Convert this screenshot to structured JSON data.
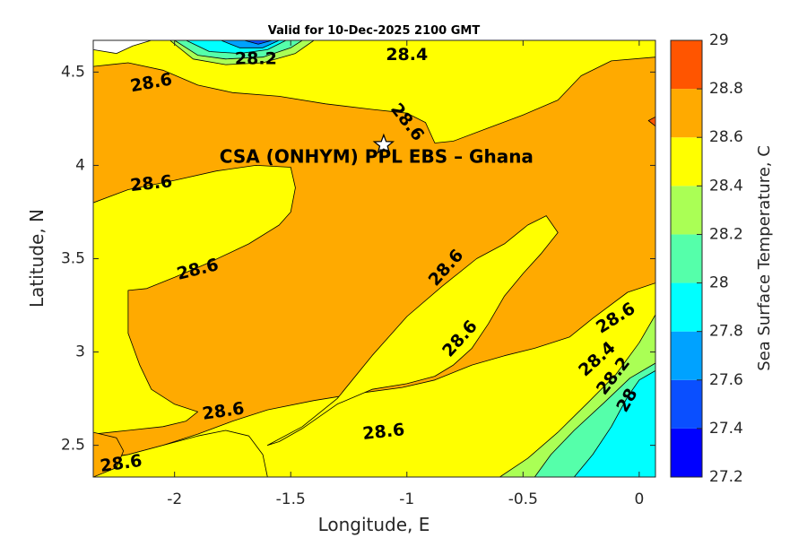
{
  "chart_data": {
    "type": "heatmap",
    "subtype": "filled-contour-map",
    "title": "Valid for 10-Dec-2025 2100 GMT",
    "xlabel": "Longitude, E",
    "ylabel": "Latitude, N",
    "xlim": [
      -2.35,
      0.07
    ],
    "ylim": [
      2.33,
      4.67
    ],
    "xticks": [
      -2,
      -1.5,
      -1,
      -0.5,
      0
    ],
    "xtick_labels": [
      "-2",
      "-1.5",
      "-1",
      "-0.5",
      "0"
    ],
    "yticks": [
      2.5,
      3,
      3.5,
      4,
      4.5
    ],
    "ytick_labels": [
      "2.5",
      "3",
      "3.5",
      "4",
      "4.5"
    ],
    "colorbar": {
      "label": "Sea Surface Temperature, C",
      "ticks": [
        27.2,
        27.4,
        27.6,
        27.8,
        28,
        28.2,
        28.4,
        28.6,
        28.8,
        29
      ],
      "tick_labels": [
        "27.2",
        "27.4",
        "27.6",
        "27.8",
        "28",
        "28.2",
        "28.4",
        "28.6",
        "28.8",
        "29"
      ],
      "levels": [
        {
          "min": 27.2,
          "max": 27.4,
          "color": "#0000ff"
        },
        {
          "min": 27.4,
          "max": 27.6,
          "color": "#0a4fff"
        },
        {
          "min": 27.6,
          "max": 27.8,
          "color": "#00a2ff"
        },
        {
          "min": 27.8,
          "max": 28.0,
          "color": "#00ffff"
        },
        {
          "min": 28.0,
          "max": 28.2,
          "color": "#55ffaa"
        },
        {
          "min": 28.2,
          "max": 28.4,
          "color": "#aaff55"
        },
        {
          "min": 28.4,
          "max": 28.6,
          "color": "#ffff00"
        },
        {
          "min": 28.6,
          "max": 28.8,
          "color": "#ffaa00"
        },
        {
          "min": 28.8,
          "max": 29.0,
          "color": "#ff5500"
        }
      ]
    },
    "marker": {
      "label": "CSA (ONHYM) PPL EBS  – Ghana",
      "lon": -1.1,
      "lat": 4.11,
      "symbol": "star"
    },
    "regions": [
      {
        "value": 28.5,
        "color": "#ffff00",
        "points": [
          [
            -2.35,
            4.67
          ],
          [
            0.07,
            4.67
          ],
          [
            0.07,
            2.33
          ],
          [
            -2.35,
            2.33
          ]
        ]
      },
      {
        "value": 28.7,
        "color": "#ffaa00",
        "points": [
          [
            -2.35,
            4.53
          ],
          [
            -2.2,
            4.55
          ],
          [
            -2.05,
            4.51
          ],
          [
            -1.9,
            4.43
          ],
          [
            -1.75,
            4.39
          ],
          [
            -1.55,
            4.37
          ],
          [
            -1.35,
            4.33
          ],
          [
            -1.15,
            4.3
          ],
          [
            -1.0,
            4.28
          ],
          [
            -0.92,
            4.23
          ],
          [
            -0.88,
            4.12
          ],
          [
            -0.8,
            4.13
          ],
          [
            -0.65,
            4.2
          ],
          [
            -0.5,
            4.27
          ],
          [
            -0.35,
            4.35
          ],
          [
            -0.25,
            4.48
          ],
          [
            -0.12,
            4.56
          ],
          [
            0.07,
            4.58
          ],
          [
            0.07,
            3.37
          ],
          [
            -0.05,
            3.32
          ],
          [
            -0.2,
            3.18
          ],
          [
            -0.3,
            3.08
          ],
          [
            -0.45,
            3.02
          ],
          [
            -0.58,
            2.98
          ],
          [
            -0.72,
            2.93
          ],
          [
            -0.88,
            2.85
          ],
          [
            -1.02,
            2.81
          ],
          [
            -1.2,
            2.78
          ],
          [
            -1.4,
            2.74
          ],
          [
            -1.6,
            2.69
          ],
          [
            -1.75,
            2.63
          ],
          [
            -1.9,
            2.56
          ],
          [
            -2.05,
            2.5
          ],
          [
            -2.2,
            2.45
          ],
          [
            -2.35,
            2.43
          ]
        ]
      },
      {
        "value": 28.5,
        "color": "#ffff00",
        "points": [
          [
            -2.35,
            3.8
          ],
          [
            -2.2,
            3.87
          ],
          [
            -2.0,
            3.92
          ],
          [
            -1.82,
            3.97
          ],
          [
            -1.65,
            4.0
          ],
          [
            -1.5,
            3.99
          ],
          [
            -1.48,
            3.88
          ],
          [
            -1.5,
            3.75
          ],
          [
            -1.55,
            3.68
          ],
          [
            -1.68,
            3.58
          ],
          [
            -1.85,
            3.48
          ],
          [
            -2.0,
            3.4
          ],
          [
            -2.12,
            3.34
          ],
          [
            -2.2,
            3.33
          ],
          [
            -2.2,
            3.1
          ],
          [
            -2.15,
            2.93
          ],
          [
            -2.1,
            2.8
          ],
          [
            -2.0,
            2.72
          ],
          [
            -1.9,
            2.68
          ],
          [
            -1.95,
            2.63
          ],
          [
            -2.05,
            2.6
          ],
          [
            -2.2,
            2.58
          ],
          [
            -2.35,
            2.56
          ]
        ]
      },
      {
        "value": 28.5,
        "color": "#ffff00",
        "points": [
          [
            -1.6,
            2.5
          ],
          [
            -1.45,
            2.6
          ],
          [
            -1.3,
            2.75
          ],
          [
            -1.15,
            2.98
          ],
          [
            -1.0,
            3.19
          ],
          [
            -0.85,
            3.35
          ],
          [
            -0.7,
            3.5
          ],
          [
            -0.58,
            3.58
          ],
          [
            -0.48,
            3.68
          ],
          [
            -0.4,
            3.73
          ],
          [
            -0.35,
            3.64
          ],
          [
            -0.42,
            3.53
          ],
          [
            -0.5,
            3.42
          ],
          [
            -0.58,
            3.3
          ],
          [
            -0.65,
            3.15
          ],
          [
            -0.72,
            3.02
          ],
          [
            -0.8,
            2.93
          ],
          [
            -0.88,
            2.87
          ],
          [
            -1.0,
            2.83
          ],
          [
            -1.15,
            2.8
          ],
          [
            -1.3,
            2.72
          ],
          [
            -1.45,
            2.59
          ],
          [
            -1.55,
            2.52
          ]
        ]
      },
      {
        "value": 28.5,
        "color": "#ffff00",
        "points": [
          [
            -2.35,
            2.33
          ],
          [
            -2.35,
            2.42
          ],
          [
            -2.2,
            2.45
          ],
          [
            -2.05,
            2.5
          ],
          [
            -1.9,
            2.55
          ],
          [
            -1.78,
            2.58
          ],
          [
            -1.68,
            2.55
          ],
          [
            -1.62,
            2.45
          ],
          [
            -1.6,
            2.33
          ]
        ]
      },
      {
        "value": 28.5,
        "color": "#ffff00",
        "points": [
          [
            -0.42,
            2.33
          ],
          [
            -0.3,
            2.36
          ],
          [
            -0.18,
            2.44
          ],
          [
            -0.1,
            2.56
          ],
          [
            -0.02,
            2.68
          ],
          [
            0.07,
            2.73
          ],
          [
            0.07,
            2.33
          ]
        ]
      },
      {
        "value": 28.3,
        "color": "#aaff55",
        "points": [
          [
            -0.6,
            2.33
          ],
          [
            -0.48,
            2.43
          ],
          [
            -0.35,
            2.57
          ],
          [
            -0.22,
            2.73
          ],
          [
            -0.1,
            2.88
          ],
          [
            0.0,
            3.05
          ],
          [
            0.07,
            3.2
          ],
          [
            0.07,
            2.33
          ]
        ]
      },
      {
        "value": 28.1,
        "color": "#55ffaa",
        "points": [
          [
            -0.45,
            2.33
          ],
          [
            -0.38,
            2.45
          ],
          [
            -0.28,
            2.58
          ],
          [
            -0.15,
            2.73
          ],
          [
            -0.04,
            2.86
          ],
          [
            0.07,
            2.94
          ],
          [
            0.07,
            2.33
          ]
        ]
      },
      {
        "value": 27.9,
        "color": "#00ffff",
        "points": [
          [
            -0.28,
            2.33
          ],
          [
            -0.2,
            2.45
          ],
          [
            -0.12,
            2.6
          ],
          [
            -0.05,
            2.76
          ],
          [
            0.0,
            2.85
          ],
          [
            0.07,
            2.9
          ],
          [
            0.07,
            2.33
          ]
        ]
      },
      {
        "value": 28.7,
        "color": "#ffaa00",
        "points": [
          [
            -2.35,
            2.33
          ],
          [
            -2.25,
            2.38
          ],
          [
            -2.22,
            2.47
          ],
          [
            -2.25,
            2.54
          ],
          [
            -2.35,
            2.57
          ]
        ]
      },
      {
        "value": 28.9,
        "color": "#ff5500",
        "points": [
          [
            0.07,
            4.26
          ],
          [
            0.04,
            4.24
          ],
          [
            0.07,
            4.21
          ]
        ]
      },
      {
        "value": 28.3,
        "color": "#aaff55",
        "points": [
          [
            -2.02,
            4.67
          ],
          [
            -1.92,
            4.57
          ],
          [
            -1.78,
            4.54
          ],
          [
            -1.62,
            4.55
          ],
          [
            -1.48,
            4.6
          ],
          [
            -1.4,
            4.67
          ]
        ]
      },
      {
        "value": 28.1,
        "color": "#55ffaa",
        "points": [
          [
            -2.0,
            4.67
          ],
          [
            -1.9,
            4.59
          ],
          [
            -1.78,
            4.57
          ],
          [
            -1.62,
            4.58
          ],
          [
            -1.5,
            4.63
          ],
          [
            -1.45,
            4.67
          ]
        ]
      },
      {
        "value": 27.9,
        "color": "#00ffff",
        "points": [
          [
            -1.95,
            4.67
          ],
          [
            -1.85,
            4.61
          ],
          [
            -1.72,
            4.6
          ],
          [
            -1.6,
            4.62
          ],
          [
            -1.52,
            4.67
          ]
        ]
      },
      {
        "value": 27.7,
        "color": "#00a2ff",
        "points": [
          [
            -1.8,
            4.67
          ],
          [
            -1.72,
            4.63
          ],
          [
            -1.62,
            4.63
          ],
          [
            -1.55,
            4.67
          ]
        ]
      },
      {
        "value": 27.5,
        "color": "#0a4fff",
        "points": [
          [
            -1.7,
            4.67
          ],
          [
            -1.64,
            4.65
          ],
          [
            -1.58,
            4.67
          ]
        ]
      },
      {
        "value": null,
        "color": "#ffffff",
        "points": [
          [
            -2.35,
            4.67
          ],
          [
            -2.35,
            4.62
          ],
          [
            -2.25,
            4.6
          ],
          [
            -2.18,
            4.64
          ],
          [
            -2.1,
            4.67
          ]
        ]
      }
    ],
    "contour_labels": [
      {
        "text": "28.6",
        "lon": -2.1,
        "lat": 4.44,
        "angle": -10
      },
      {
        "text": "28.6",
        "lon": -1.0,
        "lat": 4.23,
        "angle": 52
      },
      {
        "text": "28.4",
        "lon": -1.0,
        "lat": 4.59,
        "angle": 0
      },
      {
        "text": "28.2",
        "lon": -1.65,
        "lat": 4.57,
        "angle": 0
      },
      {
        "text": "28.6",
        "lon": -2.1,
        "lat": 3.9,
        "angle": -6
      },
      {
        "text": "28.6",
        "lon": -1.9,
        "lat": 3.44,
        "angle": -14
      },
      {
        "text": "28.6",
        "lon": -0.83,
        "lat": 3.45,
        "angle": -48
      },
      {
        "text": "28.6",
        "lon": -0.77,
        "lat": 3.07,
        "angle": -48
      },
      {
        "text": "28.6",
        "lon": -1.79,
        "lat": 2.68,
        "angle": -8
      },
      {
        "text": "28.6",
        "lon": -1.1,
        "lat": 2.57,
        "angle": -6
      },
      {
        "text": "28.6",
        "lon": -2.23,
        "lat": 2.4,
        "angle": -8
      },
      {
        "text": "28.6",
        "lon": -0.1,
        "lat": 3.18,
        "angle": -32
      },
      {
        "text": "28.4",
        "lon": -0.18,
        "lat": 2.96,
        "angle": -42
      },
      {
        "text": "28.2",
        "lon": -0.11,
        "lat": 2.87,
        "angle": -52
      },
      {
        "text": "28",
        "lon": -0.05,
        "lat": 2.74,
        "angle": -60
      }
    ]
  }
}
